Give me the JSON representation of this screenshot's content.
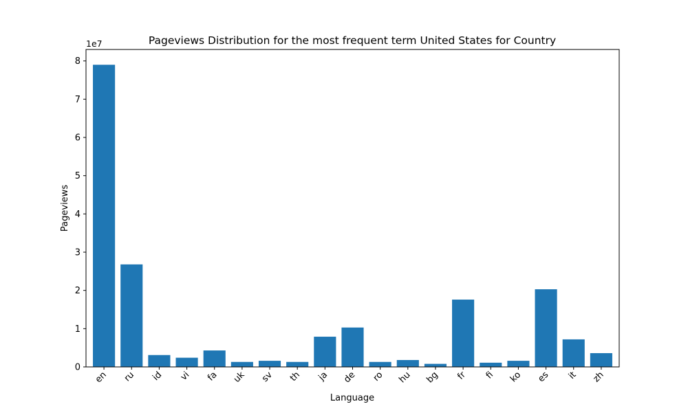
{
  "chart_data": {
    "type": "bar",
    "title": "Pageviews Distribution for the most frequent term United States for Country",
    "xlabel": "Language",
    "ylabel": "Pageviews",
    "y_offset_label": "1e7",
    "y_scale": 10000000,
    "ylim": [
      0,
      83000000
    ],
    "yticks": [
      0,
      1,
      2,
      3,
      4,
      5,
      6,
      7,
      8
    ],
    "grid": false,
    "bar_color": "#1f77b4",
    "categories": [
      "en",
      "ru",
      "id",
      "vi",
      "fa",
      "uk",
      "sv",
      "th",
      "ja",
      "de",
      "ro",
      "hu",
      "bg",
      "fr",
      "fi",
      "ko",
      "es",
      "it",
      "zh"
    ],
    "values": [
      79000000,
      26800000,
      3100000,
      2400000,
      4300000,
      1300000,
      1600000,
      1300000,
      7900000,
      10300000,
      1300000,
      1800000,
      800000,
      17600000,
      1100000,
      1600000,
      20300000,
      7200000,
      3600000
    ]
  }
}
